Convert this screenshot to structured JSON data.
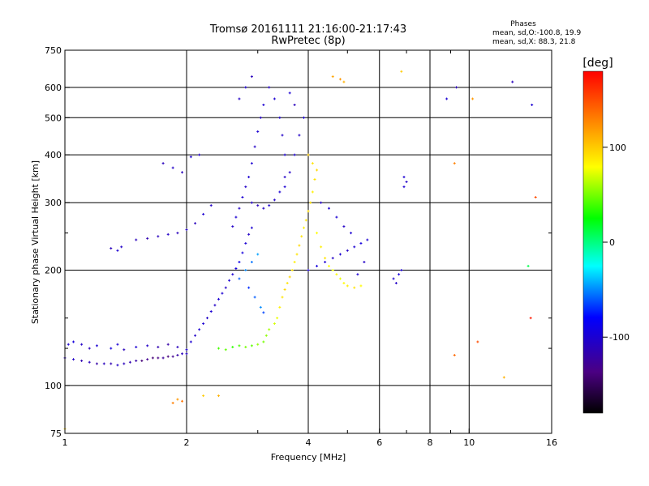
{
  "chart_data": {
    "type": "scatter",
    "title": "Tromsø 20161111 21:16:00-21:17:43",
    "subtitle": "RwPretec (8p)",
    "xlabel": "Frequency [MHz]",
    "ylabel": "Stationary phase Virtual Height [km]",
    "x_scale": "log",
    "y_scale": "log",
    "xlim": [
      1,
      16
    ],
    "ylim": [
      75,
      750
    ],
    "x_ticks": [
      1,
      2,
      4,
      6,
      8,
      10,
      16
    ],
    "x_tick_labels": [
      "1",
      "2",
      "4",
      "6",
      "8",
      "10",
      "16"
    ],
    "x_minor_ticks": [
      3,
      5,
      7,
      9
    ],
    "y_ticks": [
      75,
      100,
      200,
      300,
      400,
      500,
      600,
      750
    ],
    "y_tick_labels": [
      "75",
      "100",
      "200",
      "300",
      "400",
      "500",
      "600",
      "750"
    ],
    "y_minor_ticks": [
      125,
      150,
      250
    ],
    "grid": true,
    "colorbar": {
      "label": "[deg]",
      "range": [
        -180,
        180
      ],
      "ticks": [
        100,
        0,
        -100
      ],
      "tick_labels": [
        "100",
        "0",
        "-100"
      ],
      "colors": [
        "#000000",
        "#4b0082",
        "#0000ff",
        "#00ffff",
        "#00ff00",
        "#ffff00",
        "#ff8000",
        "#ff0000"
      ]
    },
    "annotation": {
      "title": "Phases",
      "lines": [
        "mean, sd,O:-100.8, 19.9",
        "mean, sd,X: 88.3, 21.8"
      ]
    },
    "series": [
      {
        "points": [
          [
            1.0,
            118,
            -110
          ],
          [
            1.05,
            117,
            -105
          ],
          [
            1.1,
            116,
            -115
          ],
          [
            1.15,
            115,
            -110
          ],
          [
            1.2,
            114,
            -120
          ],
          [
            1.25,
            114,
            -110
          ],
          [
            1.3,
            114,
            -115
          ],
          [
            1.35,
            113,
            -105
          ],
          [
            1.4,
            114,
            -110
          ],
          [
            1.45,
            115,
            -115
          ],
          [
            1.5,
            116,
            -120
          ],
          [
            1.55,
            116,
            -140
          ],
          [
            1.6,
            117,
            -130
          ],
          [
            1.65,
            118,
            -140
          ],
          [
            1.7,
            118,
            -135
          ],
          [
            1.75,
            118,
            -125
          ],
          [
            1.8,
            119,
            -140
          ],
          [
            1.85,
            119,
            -130
          ],
          [
            1.9,
            120,
            -120
          ],
          [
            1.95,
            121,
            -110
          ],
          [
            2.0,
            121,
            -105
          ],
          [
            1.02,
            128,
            -100
          ],
          [
            1.05,
            130,
            -95
          ],
          [
            1.1,
            128,
            -105
          ],
          [
            1.15,
            125,
            -110
          ],
          [
            1.2,
            127,
            -100
          ],
          [
            1.3,
            125,
            -95
          ],
          [
            1.35,
            128,
            -100
          ],
          [
            1.4,
            124,
            -110
          ],
          [
            1.5,
            126,
            -100
          ],
          [
            1.6,
            127,
            -105
          ],
          [
            1.7,
            126,
            -115
          ],
          [
            1.8,
            128,
            -120
          ],
          [
            1.9,
            126,
            -110
          ],
          [
            2.0,
            124,
            -100
          ],
          [
            2.05,
            130,
            -100
          ],
          [
            2.1,
            135,
            -105
          ],
          [
            2.15,
            140,
            -100
          ],
          [
            2.2,
            145,
            -100
          ],
          [
            2.25,
            150,
            -105
          ],
          [
            2.3,
            156,
            -100
          ],
          [
            2.35,
            162,
            -105
          ],
          [
            2.4,
            168,
            -100
          ],
          [
            2.45,
            174,
            -100
          ],
          [
            2.5,
            180,
            -105
          ],
          [
            2.55,
            188,
            -100
          ],
          [
            2.6,
            195,
            -100
          ],
          [
            2.65,
            202,
            -95
          ],
          [
            2.7,
            210,
            -90
          ],
          [
            2.75,
            222,
            -95
          ],
          [
            2.8,
            235,
            -100
          ],
          [
            2.85,
            248,
            -105
          ],
          [
            2.9,
            258,
            -100
          ],
          [
            2.6,
            260,
            -105
          ],
          [
            2.65,
            275,
            -100
          ],
          [
            2.7,
            290,
            -105
          ],
          [
            2.75,
            310,
            -100
          ],
          [
            2.8,
            330,
            -105
          ],
          [
            2.85,
            350,
            -100
          ],
          [
            2.9,
            380,
            -100
          ],
          [
            2.95,
            420,
            -105
          ],
          [
            3.0,
            460,
            -100
          ],
          [
            3.05,
            500,
            -105
          ],
          [
            3.1,
            540,
            -100
          ],
          [
            2.7,
            560,
            -105
          ],
          [
            2.8,
            600,
            -100
          ],
          [
            2.9,
            640,
            -110
          ],
          [
            2.7,
            190,
            -60
          ],
          [
            2.8,
            200,
            -50
          ],
          [
            2.9,
            210,
            -55
          ],
          [
            3.0,
            220,
            -45
          ],
          [
            2.85,
            180,
            -70
          ],
          [
            2.95,
            170,
            -60
          ],
          [
            3.05,
            160,
            -50
          ],
          [
            3.1,
            155,
            -65
          ],
          [
            2.9,
            300,
            -105
          ],
          [
            3.0,
            295,
            -110
          ],
          [
            3.1,
            290,
            -105
          ],
          [
            3.2,
            295,
            -100
          ],
          [
            3.3,
            305,
            -105
          ],
          [
            3.4,
            320,
            -100
          ],
          [
            3.5,
            350,
            -105
          ],
          [
            3.5,
            400,
            -100
          ],
          [
            3.45,
            450,
            -105
          ],
          [
            3.4,
            500,
            -100
          ],
          [
            3.3,
            560,
            -100
          ],
          [
            3.2,
            600,
            -105
          ],
          [
            3.5,
            330,
            -100
          ],
          [
            3.6,
            360,
            -105
          ],
          [
            3.7,
            400,
            -100
          ],
          [
            3.8,
            450,
            -105
          ],
          [
            3.9,
            500,
            -100
          ],
          [
            3.7,
            540,
            -110
          ],
          [
            3.6,
            580,
            -100
          ],
          [
            2.4,
            125,
            40
          ],
          [
            2.5,
            124,
            45
          ],
          [
            2.6,
            126,
            35
          ],
          [
            2.7,
            127,
            40
          ],
          [
            2.8,
            126,
            50
          ],
          [
            2.9,
            127,
            45
          ],
          [
            3.0,
            128,
            55
          ],
          [
            3.1,
            130,
            50
          ],
          [
            3.15,
            135,
            55
          ],
          [
            3.2,
            140,
            60
          ],
          [
            3.3,
            145,
            70
          ],
          [
            3.35,
            150,
            75
          ],
          [
            3.4,
            160,
            85
          ],
          [
            3.45,
            170,
            90
          ],
          [
            3.5,
            178,
            95
          ],
          [
            3.55,
            185,
            90
          ],
          [
            3.6,
            192,
            95
          ],
          [
            3.65,
            200,
            90
          ],
          [
            3.7,
            210,
            85
          ],
          [
            3.75,
            220,
            90
          ],
          [
            3.8,
            232,
            95
          ],
          [
            3.85,
            245,
            90
          ],
          [
            3.9,
            258,
            85
          ],
          [
            3.95,
            270,
            90
          ],
          [
            4.0,
            285,
            95
          ],
          [
            4.05,
            300,
            90
          ],
          [
            4.1,
            320,
            85
          ],
          [
            4.15,
            345,
            90
          ],
          [
            4.2,
            365,
            95
          ],
          [
            4.1,
            380,
            90
          ],
          [
            4.0,
            400,
            100
          ],
          [
            4.2,
            250,
            80
          ],
          [
            4.3,
            230,
            85
          ],
          [
            4.4,
            215,
            90
          ],
          [
            4.5,
            205,
            80
          ],
          [
            4.6,
            200,
            75
          ],
          [
            4.7,
            195,
            80
          ],
          [
            4.8,
            190,
            75
          ],
          [
            4.9,
            185,
            80
          ],
          [
            5.0,
            182,
            85
          ],
          [
            5.2,
            180,
            90
          ],
          [
            5.4,
            182,
            80
          ],
          [
            4.0,
            200,
            -100
          ],
          [
            4.2,
            205,
            -95
          ],
          [
            4.4,
            210,
            -100
          ],
          [
            4.6,
            215,
            -105
          ],
          [
            4.8,
            220,
            -100
          ],
          [
            5.0,
            225,
            -105
          ],
          [
            5.2,
            230,
            -100
          ],
          [
            5.4,
            235,
            -95
          ],
          [
            5.6,
            240,
            -100
          ],
          [
            5.5,
            210,
            -105
          ],
          [
            5.3,
            195,
            -100
          ],
          [
            4.3,
            300,
            -105
          ],
          [
            4.5,
            290,
            -100
          ],
          [
            4.7,
            275,
            -100
          ],
          [
            4.9,
            260,
            -105
          ],
          [
            5.1,
            250,
            -100
          ],
          [
            6.5,
            190,
            -100
          ],
          [
            6.7,
            195,
            -95
          ],
          [
            6.8,
            200,
            -100
          ],
          [
            6.6,
            185,
            -105
          ],
          [
            6.9,
            330,
            -100
          ],
          [
            7.0,
            340,
            -105
          ],
          [
            6.9,
            350,
            -100
          ],
          [
            1.85,
            90,
            130
          ],
          [
            1.9,
            92,
            120
          ],
          [
            1.95,
            91,
            135
          ],
          [
            2.2,
            94,
            100
          ],
          [
            2.4,
            94,
            110
          ],
          [
            1.5,
            240,
            -110
          ],
          [
            1.6,
            242,
            -115
          ],
          [
            1.7,
            245,
            -110
          ],
          [
            1.8,
            248,
            -105
          ],
          [
            1.9,
            250,
            -110
          ],
          [
            2.0,
            255,
            -105
          ],
          [
            2.1,
            265,
            -110
          ],
          [
            2.2,
            280,
            -100
          ],
          [
            2.3,
            295,
            -105
          ],
          [
            1.3,
            228,
            -110
          ],
          [
            1.35,
            225,
            -100
          ],
          [
            1.38,
            230,
            -105
          ],
          [
            1.75,
            380,
            -110
          ],
          [
            1.85,
            370,
            -105
          ],
          [
            1.95,
            360,
            -110
          ],
          [
            2.05,
            395,
            -100
          ],
          [
            2.15,
            400,
            -105
          ],
          [
            4.8,
            630,
            120
          ],
          [
            4.9,
            620,
            110
          ],
          [
            4.6,
            640,
            115
          ],
          [
            6.8,
            660,
            100
          ],
          [
            8.8,
            560,
            -100
          ],
          [
            9.3,
            600,
            -110
          ],
          [
            10.2,
            560,
            120
          ],
          [
            12.8,
            620,
            -110
          ],
          [
            14.3,
            540,
            -100
          ],
          [
            9.2,
            380,
            130
          ],
          [
            14.6,
            310,
            150
          ],
          [
            9.2,
            120,
            140
          ],
          [
            10.5,
            130,
            150
          ],
          [
            12.2,
            105,
            110
          ],
          [
            14.2,
            150,
            170
          ],
          [
            14.0,
            205,
            10
          ],
          [
            1.0,
            77,
            100
          ]
        ]
      }
    ]
  }
}
